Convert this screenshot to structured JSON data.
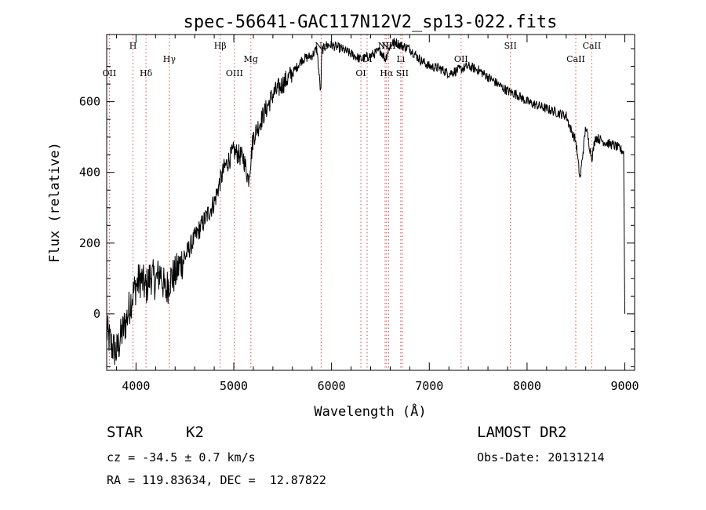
{
  "chart_data": {
    "type": "line",
    "title": "spec-56641-GAC117N12V2_sp13-022.fits",
    "xlabel": "Wavelength (Å)",
    "ylabel": "Flux (relative)",
    "xlim": [
      3700,
      9100
    ],
    "ylim": [
      -160,
      790
    ],
    "xticks": [
      4000,
      5000,
      6000,
      7000,
      8000,
      9000
    ],
    "yticks": [
      0,
      200,
      400,
      600
    ],
    "grid": false,
    "series": [
      {
        "x": [
          3700,
          3750,
          3800,
          3850,
          3900,
          3950,
          4000,
          4050,
          4100,
          4150,
          4200,
          4250,
          4300,
          4350,
          4400,
          4450,
          4500,
          4600,
          4700,
          4800,
          4850,
          4900,
          5000,
          5100,
          5150,
          5200,
          5300,
          5400,
          5500,
          5600,
          5700,
          5800,
          5850,
          5890,
          5900,
          5950,
          6000,
          6100,
          6200,
          6300,
          6400,
          6500,
          6550,
          6600,
          6650,
          6700,
          6800,
          6900,
          7000,
          7100,
          7200,
          7300,
          7400,
          7500,
          7600,
          7700,
          7800,
          7900,
          8000,
          8100,
          8200,
          8300,
          8400,
          8450,
          8498,
          8542,
          8600,
          8662,
          8700,
          8800,
          8900,
          8980,
          8990,
          9000
        ],
        "y": [
          -50,
          -90,
          -110,
          -60,
          -20,
          40,
          80,
          100,
          70,
          110,
          90,
          120,
          60,
          100,
          110,
          140,
          160,
          215,
          265,
          315,
          365,
          410,
          460,
          440,
          380,
          500,
          560,
          620,
          650,
          680,
          720,
          730,
          750,
          620,
          745,
          760,
          760,
          750,
          735,
          720,
          730,
          745,
          720,
          760,
          770,
          760,
          750,
          720,
          700,
          695,
          680,
          690,
          700,
          690,
          670,
          650,
          630,
          620,
          600,
          590,
          580,
          570,
          560,
          520,
          490,
          380,
          530,
          440,
          500,
          485,
          475,
          460,
          455,
          0
        ]
      }
    ],
    "annotations": [
      {
        "label": "OII",
        "x": 3727,
        "row": "lower"
      },
      {
        "label": "H",
        "x": 3969,
        "row": "upper"
      },
      {
        "label": "Hδ",
        "x": 4102,
        "row": "lower"
      },
      {
        "label": "Hγ",
        "x": 4341,
        "row": "middle"
      },
      {
        "label": "Hβ",
        "x": 4861,
        "row": "upper"
      },
      {
        "label": "OIII",
        "x": 5007,
        "row": "lower"
      },
      {
        "label": "Mg",
        "x": 5175,
        "row": "middle"
      },
      {
        "label": "Na",
        "x": 5893,
        "row": "upper"
      },
      {
        "label": "OI",
        "x": 6300,
        "row": "lower"
      },
      {
        "label": "OI",
        "x": 6364,
        "row": "middle"
      },
      {
        "label": "NII",
        "x": 6548,
        "row": "upper"
      },
      {
        "label": "Hα",
        "x": 6563,
        "row": "lower"
      },
      {
        "label": "NII",
        "x": 6584,
        "row": "upper"
      },
      {
        "label": "Li",
        "x": 6708,
        "row": "middle"
      },
      {
        "label": "SII",
        "x": 6724,
        "row": "lower"
      },
      {
        "label": "OII",
        "x": 7325,
        "row": "middle"
      },
      {
        "label": "SII",
        "x": 7830,
        "row": "upper"
      },
      {
        "label": "CaII",
        "x": 8498,
        "row": "middle"
      },
      {
        "label": "CaII",
        "x": 8662,
        "row": "upper"
      }
    ]
  },
  "info": {
    "class_label": "STAR",
    "subclass_label": "K2",
    "survey_label": "LAMOST DR2",
    "redshift_line": "cz = -34.5 ± 0.7 km/s",
    "obsdate_line": "Obs-Date: 20131214",
    "coords_line": "RA = 119.83634, DEC =  12.87822"
  },
  "colors": {
    "spectrum": "#000000",
    "line_markers": "#d94a4a",
    "axes": "#000000"
  }
}
